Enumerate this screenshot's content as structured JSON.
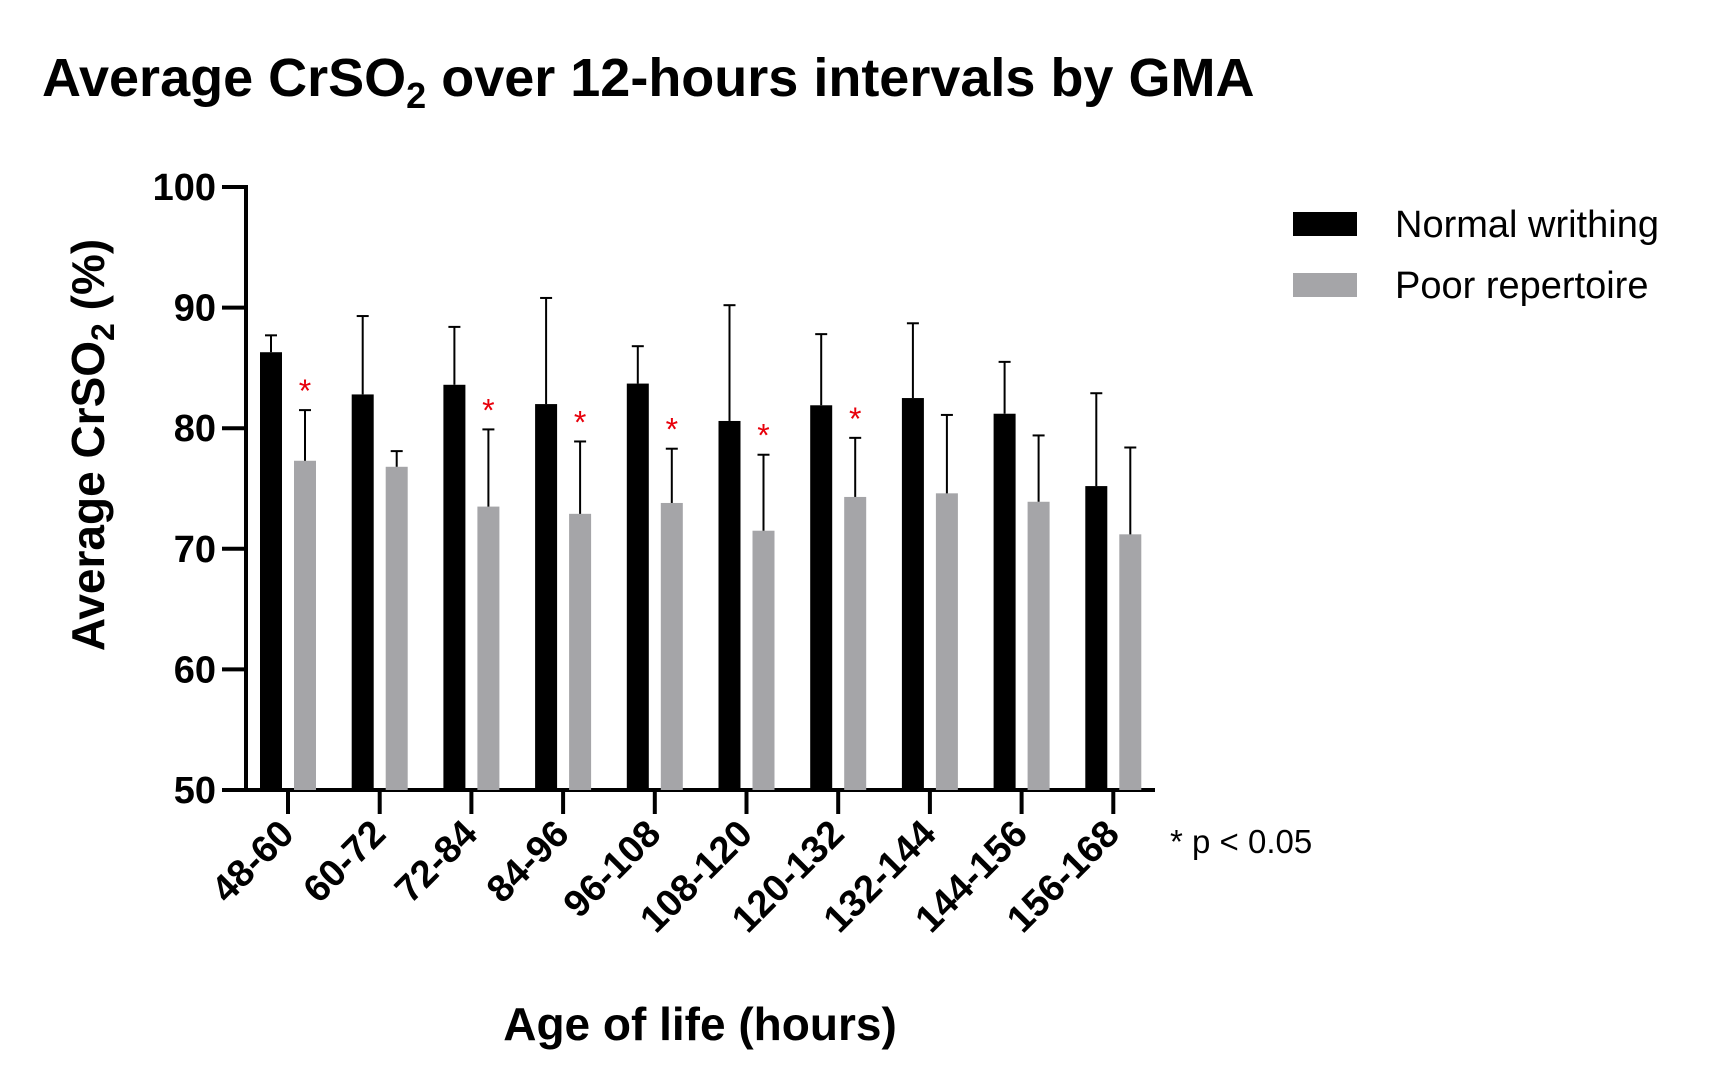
{
  "chart_data": {
    "type": "bar",
    "title_main": "Average CrSO",
    "title_sub": "2",
    "title_rest": " over 12-hours intervals by GMA",
    "ylabel_main": "Average CrSO",
    "ylabel_sub": "2",
    "ylabel_rest": " (%)",
    "xlabel": "Age of life (hours)",
    "ylim": [
      50,
      100
    ],
    "yticks": [
      "50",
      "60",
      "70",
      "80",
      "90",
      "100"
    ],
    "categories": [
      "48-60",
      "60-72",
      "72-84",
      "84-96",
      "96-108",
      "108-120",
      "120-132",
      "132-144",
      "144-156",
      "156-168"
    ],
    "series": [
      {
        "name": "Normal writhing",
        "color": "#000000",
        "values": [
          86.3,
          82.8,
          83.6,
          82.0,
          83.7,
          80.6,
          81.9,
          82.5,
          81.2,
          75.2
        ],
        "error": [
          1.4,
          6.5,
          4.8,
          8.8,
          3.1,
          9.6,
          5.9,
          6.2,
          4.3,
          7.7
        ]
      },
      {
        "name": "Poor repertoire",
        "color": "#a5a5a8",
        "values": [
          77.3,
          76.8,
          73.5,
          72.9,
          73.8,
          71.5,
          74.3,
          74.6,
          73.9,
          71.2
        ],
        "error": [
          4.2,
          1.3,
          6.4,
          6.0,
          4.5,
          6.3,
          4.9,
          6.5,
          5.5,
          7.2
        ]
      }
    ],
    "significant": [
      true,
      false,
      true,
      true,
      true,
      true,
      true,
      false,
      false,
      false
    ],
    "significance_marker": "*",
    "significance_color": "#e8000b",
    "note": "* p < 0.05",
    "legend_position": "top-right",
    "grid": false
  }
}
